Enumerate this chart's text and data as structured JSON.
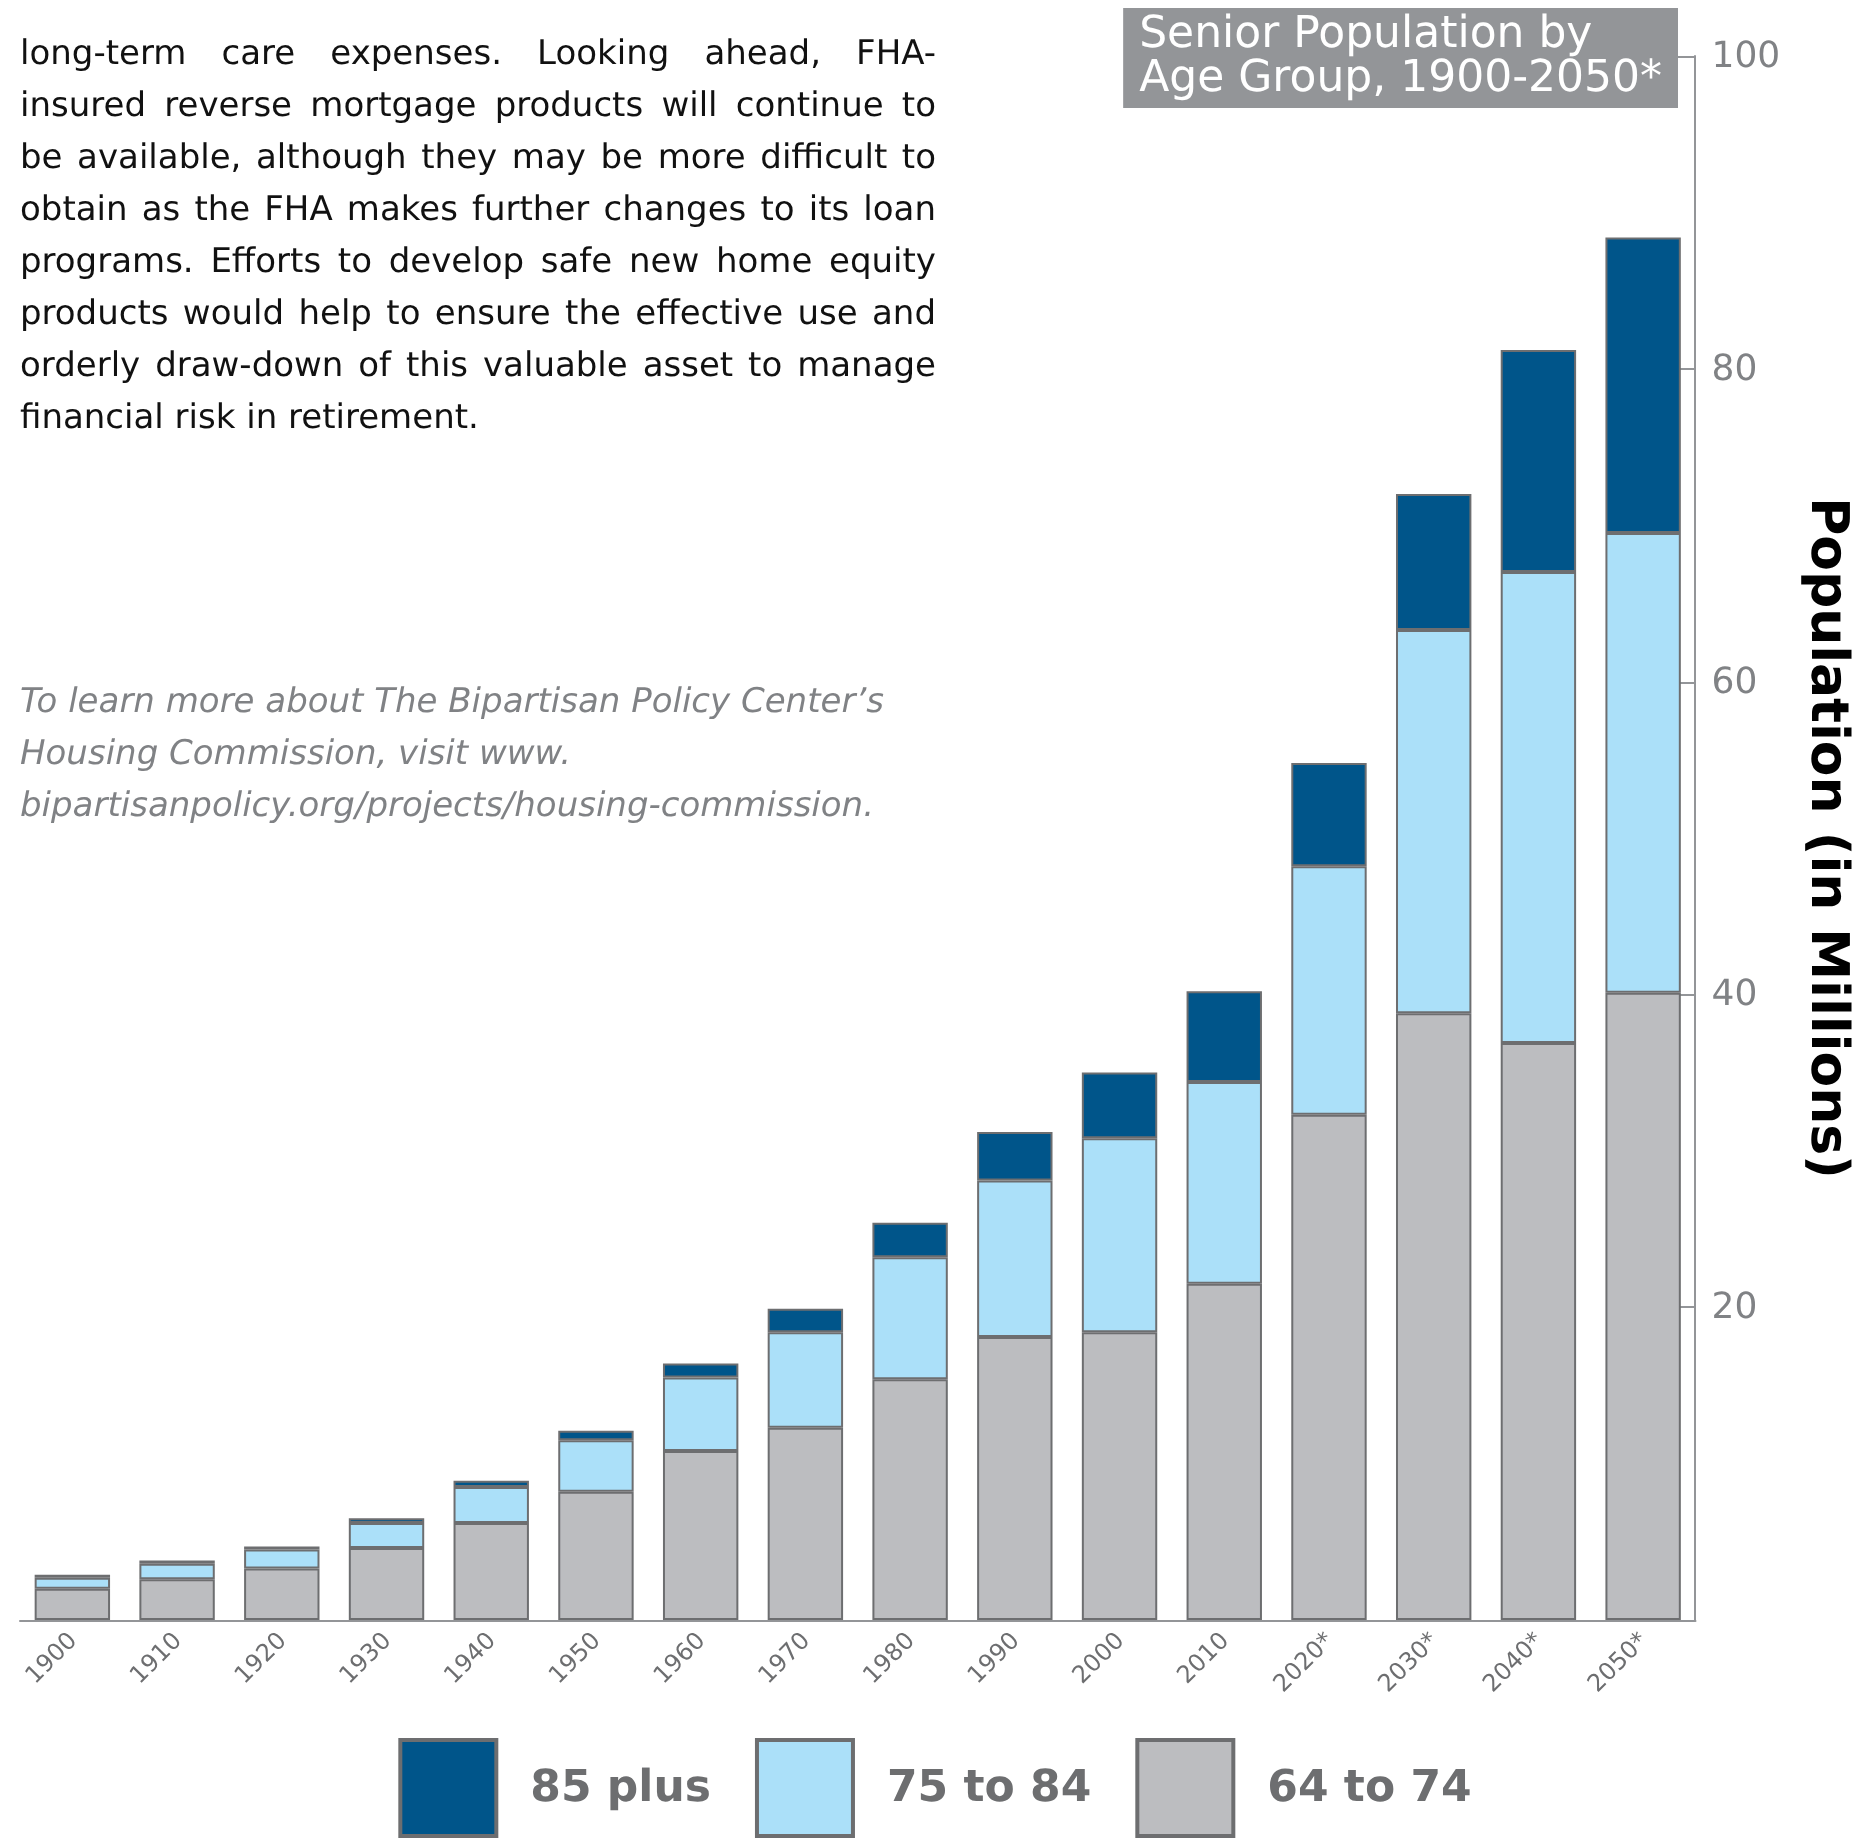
{
  "chart_data": {
    "type": "bar",
    "title": "Senior Population by\nAge Group, 1900-2050*",
    "ylabel": "Population (in Millions)",
    "annotations": [
      "long-term care expenses. Looking ahead, FHA-insured reverse mortgage products will continue to be available, although they may be more difficult to obtain as the FHA makes further changes to its loan programs. Efforts to develop safe new home equity products would help to ensure the effective use and orderly draw-down of this valuable asset to manage financial risk in retirement.",
      "To learn more about The Bipartisan Policy Center’s Housing Commission, visit www. bipartisanpolicy.org/projects/housing-commission."
    ],
    "categories": [
      "1900",
      "1910",
      "1920",
      "1930",
      "1940",
      "1950",
      "1960",
      "1970",
      "1980",
      "1990",
      "2000",
      "2010",
      "2020*",
      "2030*",
      "2040*",
      "2050*"
    ],
    "stacked": true,
    "series": [
      {
        "name": "64 to 74",
        "color": "#bcbdc0",
        "values": [
          2.0,
          2.6,
          3.3,
          4.6,
          6.2,
          8.2,
          10.8,
          12.3,
          15.4,
          18.1,
          18.4,
          21.5,
          32.3,
          38.8,
          36.9,
          40.1
        ]
      },
      {
        "name": "75 to 84",
        "color": "#abe0f9",
        "values": [
          0.7,
          1.0,
          1.2,
          1.6,
          2.3,
          3.3,
          4.7,
          6.1,
          7.8,
          10.0,
          12.4,
          12.9,
          15.9,
          24.5,
          30.1,
          29.4
        ]
      },
      {
        "name": "85 plus",
        "color": "#00558a",
        "values": [
          0.2,
          0.2,
          0.2,
          0.3,
          0.4,
          0.6,
          0.9,
          1.5,
          2.2,
          3.1,
          4.2,
          5.8,
          6.6,
          8.7,
          14.2,
          18.9
        ]
      }
    ],
    "ylim": [
      0,
      100
    ],
    "yticks": [
      20,
      40,
      60,
      80,
      100
    ],
    "grid": false,
    "legend": "bottom"
  }
}
